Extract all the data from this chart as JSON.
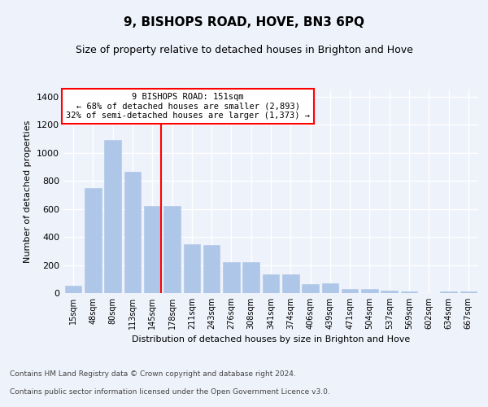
{
  "title": "9, BISHOPS ROAD, HOVE, BN3 6PQ",
  "subtitle": "Size of property relative to detached houses in Brighton and Hove",
  "xlabel": "Distribution of detached houses by size in Brighton and Hove",
  "ylabel": "Number of detached properties",
  "footer1": "Contains HM Land Registry data © Crown copyright and database right 2024.",
  "footer2": "Contains public sector information licensed under the Open Government Licence v3.0.",
  "categories": [
    "15sqm",
    "48sqm",
    "80sqm",
    "113sqm",
    "145sqm",
    "178sqm",
    "211sqm",
    "243sqm",
    "276sqm",
    "308sqm",
    "341sqm",
    "374sqm",
    "406sqm",
    "439sqm",
    "471sqm",
    "504sqm",
    "537sqm",
    "569sqm",
    "602sqm",
    "634sqm",
    "667sqm"
  ],
  "bar_values": [
    50,
    750,
    1090,
    865,
    620,
    620,
    350,
    345,
    220,
    220,
    135,
    135,
    65,
    68,
    30,
    30,
    20,
    13,
    0,
    13,
    13
  ],
  "bar_color": "#aec6e8",
  "bar_edge_color": "#aec6e8",
  "vline_color": "red",
  "vline_x": 4.43,
  "annotation_text": "9 BISHOPS ROAD: 151sqm\n← 68% of detached houses are smaller (2,893)\n32% of semi-detached houses are larger (1,373) →",
  "annotation_box_color": "white",
  "annotation_box_edge_color": "red",
  "ylim": [
    0,
    1450
  ],
  "yticks": [
    0,
    200,
    400,
    600,
    800,
    1000,
    1200,
    1400
  ],
  "bg_color": "#eef2fb",
  "plot_bg_color": "#eef2fb",
  "title_fontsize": 11,
  "subtitle_fontsize": 9,
  "grid_color": "white",
  "ylabel_fontsize": 8,
  "xlabel_fontsize": 8,
  "footer_fontsize": 6.5
}
